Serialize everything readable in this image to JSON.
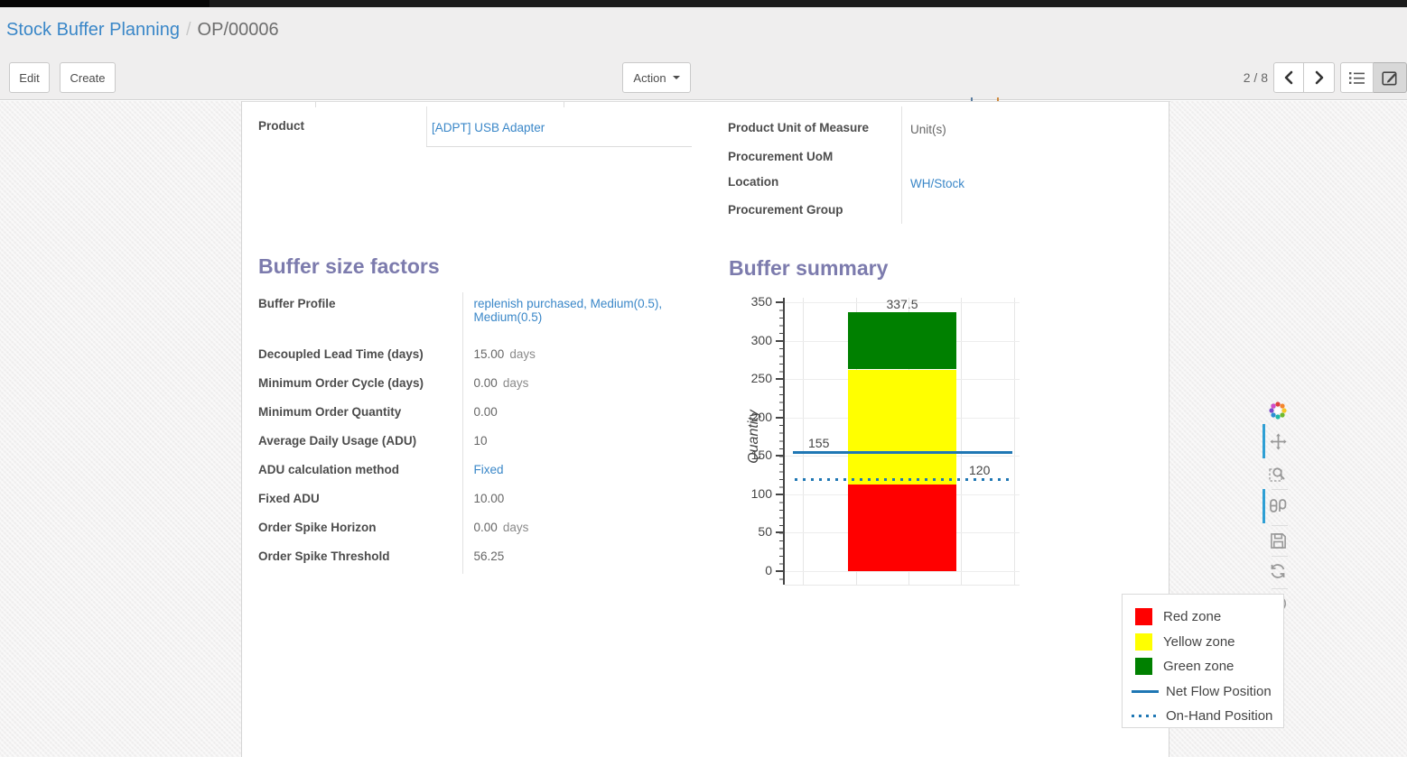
{
  "breadcrumb": {
    "parent": "Stock Buffer Planning",
    "separator": "/",
    "current": "OP/00006"
  },
  "toolbar": {
    "edit_label": "Edit",
    "create_label": "Create",
    "action_label": "Action",
    "pager": "2 / 8"
  },
  "view_switcher": {
    "list_icon": "list-view",
    "form_icon": "form-view-active"
  },
  "form": {
    "product_label": "Product",
    "product_value": "[ADPT] USB Adapter",
    "uom_label": "Product Unit of Measure",
    "uom_value": "Unit(s)",
    "procurement_uom_label": "Procurement UoM",
    "procurement_uom_value": "",
    "location_label": "Location",
    "location_value": "WH/Stock",
    "procurement_group_label": "Procurement Group",
    "procurement_group_value": ""
  },
  "buffer_size_factors": {
    "title": "Buffer size factors",
    "rows": [
      {
        "label": "Buffer Profile",
        "value": "replenish purchased, Medium(0.5), Medium(0.5)"
      },
      {
        "label": "Decoupled Lead Time (days)",
        "value": "15.00",
        "suffix": "days"
      },
      {
        "label": "Minimum Order Cycle (days)",
        "value": "0.00",
        "suffix": "days"
      },
      {
        "label": "Minimum Order Quantity",
        "value": "0.00"
      },
      {
        "label": "Average Daily Usage (ADU)",
        "value": "10"
      },
      {
        "label": "ADU calculation method",
        "value": "Fixed"
      },
      {
        "label": "Fixed ADU",
        "value": "10.00"
      },
      {
        "label": "Order Spike Horizon",
        "value": "0.00",
        "suffix": "days"
      },
      {
        "label": "Order Spike Threshold",
        "value": "56.25"
      }
    ]
  },
  "buffer_summary": {
    "title": "Buffer summary"
  },
  "chart_data": {
    "type": "bar",
    "title": "Buffer summary",
    "ylabel": "Quantity",
    "ylim": [
      0,
      350
    ],
    "yticks": [
      0,
      50,
      100,
      150,
      200,
      250,
      300,
      350
    ],
    "grid": true,
    "legend_position": "bottom-right",
    "zones": [
      {
        "name": "Red zone",
        "from": 0,
        "to": 112.5,
        "color": "#ff0000"
      },
      {
        "name": "Yellow zone",
        "from": 112.5,
        "to": 262.5,
        "color": "#ffff00"
      },
      {
        "name": "Green zone",
        "from": 262.5,
        "to": 337.5,
        "color": "#008000"
      }
    ],
    "lines": [
      {
        "name": "Net Flow Position",
        "value": 155,
        "style": "solid",
        "color": "#1f77b4",
        "label_side": "left"
      },
      {
        "name": "On-Hand Position",
        "value": 120,
        "style": "dotted",
        "color": "#1f77b4",
        "label_side": "right"
      }
    ],
    "bar_labels": [
      337.5,
      262.5,
      112.5
    ],
    "line_labels": [
      155,
      120
    ],
    "accent_color": "#2f9fd4"
  }
}
